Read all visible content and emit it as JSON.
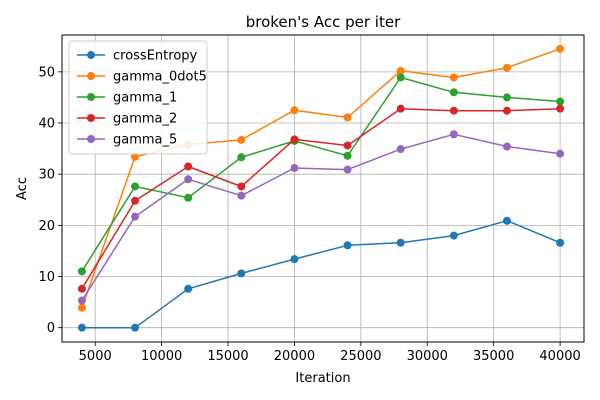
{
  "chart_data": {
    "type": "line",
    "title": "broken's Acc per iter",
    "xlabel": "Iteration",
    "ylabel": "Acc",
    "xlim": [
      2500,
      41800
    ],
    "ylim": [
      -2.8,
      57.2
    ],
    "xticks": [
      5000,
      10000,
      15000,
      20000,
      25000,
      30000,
      35000,
      40000
    ],
    "yticks": [
      0,
      10,
      20,
      30,
      40,
      50
    ],
    "grid": true,
    "legend_position": "upper-left",
    "x": [
      4000,
      8000,
      12000,
      16000,
      20000,
      24000,
      28000,
      32000,
      36000,
      40000
    ],
    "series": [
      {
        "name": "crossEntropy",
        "color": "#1f77b4",
        "values": [
          0.0,
          0.0,
          7.6,
          10.6,
          13.4,
          16.1,
          16.6,
          18.0,
          20.9,
          16.6
        ]
      },
      {
        "name": "gamma_0dot5",
        "color": "#ff7f0e",
        "values": [
          3.9,
          33.4,
          35.8,
          36.7,
          42.5,
          41.1,
          50.2,
          48.9,
          50.8,
          54.5
        ]
      },
      {
        "name": "gamma_1",
        "color": "#2ca02c",
        "values": [
          11.0,
          27.6,
          25.4,
          33.3,
          36.5,
          33.6,
          48.9,
          46.0,
          45.0,
          44.2
        ]
      },
      {
        "name": "gamma_2",
        "color": "#d62728",
        "values": [
          7.6,
          24.8,
          31.5,
          27.6,
          36.8,
          35.6,
          42.8,
          42.4,
          42.4,
          42.8
        ]
      },
      {
        "name": "gamma_5",
        "color": "#9467bd",
        "values": [
          5.3,
          21.7,
          29.0,
          25.8,
          31.2,
          30.9,
          34.9,
          37.8,
          35.4,
          34.0
        ]
      }
    ]
  }
}
